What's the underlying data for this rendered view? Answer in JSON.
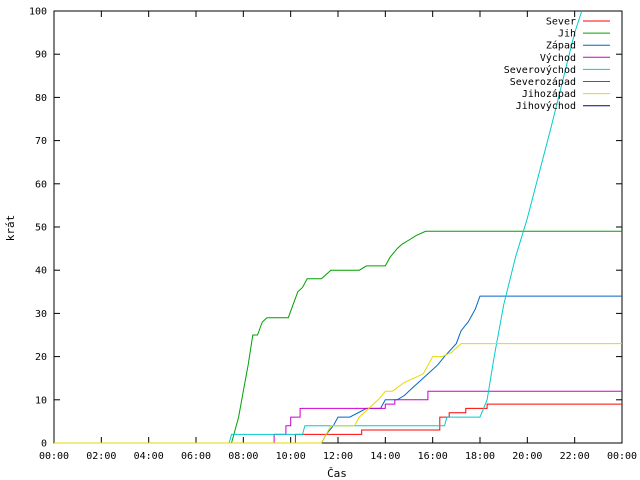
{
  "chart_data": {
    "type": "line",
    "xlabel": "Čas",
    "ylabel": "krát",
    "xlim": [
      0,
      24
    ],
    "ylim": [
      0,
      100
    ],
    "x_ticks": [
      0,
      2,
      4,
      6,
      8,
      10,
      12,
      14,
      16,
      18,
      20,
      22,
      24
    ],
    "x_tick_labels": [
      "00:00",
      "02:00",
      "04:00",
      "06:00",
      "08:00",
      "10:00",
      "12:00",
      "14:00",
      "16:00",
      "18:00",
      "20:00",
      "22:00",
      "00:00"
    ],
    "y_ticks": [
      0,
      10,
      20,
      30,
      40,
      50,
      60,
      70,
      80,
      90,
      100
    ],
    "grid": false,
    "legend_position": "top-right",
    "series": [
      {
        "name": "Sever",
        "color": "#ff0000",
        "x": [
          0,
          10.2,
          10.2,
          13.0,
          13.0,
          16.3,
          16.3,
          16.7,
          16.7,
          17.4,
          17.4,
          18.3,
          18.3,
          24
        ],
        "y": [
          0,
          0,
          2,
          2,
          3,
          3,
          6,
          6,
          7,
          7,
          8,
          8,
          9,
          9
        ]
      },
      {
        "name": "Jih",
        "color": "#00a000",
        "x": [
          0,
          7.5,
          7.6,
          7.8,
          8.0,
          8.2,
          8.4,
          8.6,
          8.8,
          9.0,
          9.9,
          10.1,
          10.3,
          10.5,
          10.7,
          11.3,
          11.7,
          12.9,
          13.2,
          14.0,
          14.2,
          14.5,
          14.7,
          15.0,
          15.3,
          15.7,
          24
        ],
        "y": [
          0,
          0,
          2,
          6,
          12,
          18,
          25,
          25,
          28,
          29,
          29,
          32,
          35,
          36,
          38,
          38,
          40,
          40,
          41,
          41,
          43,
          45,
          46,
          47,
          48,
          49,
          49
        ]
      },
      {
        "name": "Západ",
        "color": "#0066cc",
        "x": [
          0,
          11.3,
          11.5,
          11.8,
          12.0,
          12.5,
          13.2,
          13.8,
          14.0,
          14.5,
          14.8,
          15.2,
          15.8,
          16.2,
          16.5,
          17.0,
          17.2,
          17.5,
          17.8,
          18.0,
          24
        ],
        "y": [
          0,
          0,
          2,
          4,
          6,
          6,
          8,
          8,
          10,
          10,
          11,
          13,
          16,
          18,
          20,
          23,
          26,
          28,
          31,
          34,
          34
        ]
      },
      {
        "name": "Východ",
        "color": "#cc00cc",
        "x": [
          0,
          9.3,
          9.3,
          9.8,
          9.8,
          10.0,
          10.0,
          10.4,
          10.4,
          14.0,
          14.0,
          14.4,
          14.4,
          15.8,
          15.8,
          24
        ],
        "y": [
          0,
          0,
          2,
          2,
          4,
          4,
          6,
          6,
          8,
          8,
          9,
          9,
          10,
          10,
          12,
          12
        ]
      },
      {
        "name": "Severovýchod",
        "color": "#00cccc",
        "x": [
          0,
          7.4,
          7.5,
          10.5,
          10.6,
          16.5,
          16.6,
          18.0,
          18.3,
          18.6,
          19.0,
          19.5,
          20.0,
          21.0,
          22.0,
          22.3
        ],
        "y": [
          0,
          0,
          2,
          2,
          4,
          4,
          6,
          6,
          10,
          20,
          32,
          43,
          52,
          73,
          95,
          100
        ]
      },
      {
        "name": "Severozápad",
        "color": "#cc3300",
        "x": [],
        "y": []
      },
      {
        "name": "Jihozápad",
        "color": "#e8d800",
        "x": [
          0,
          11.3,
          11.5,
          11.7,
          12.7,
          12.9,
          13.7,
          14.0,
          14.3,
          14.8,
          15.6,
          16.0,
          16.4,
          16.8,
          17.2,
          17.6,
          24
        ],
        "y": [
          0,
          0,
          2,
          4,
          4,
          6,
          10,
          12,
          12,
          14,
          16,
          20,
          20,
          21,
          23,
          23,
          23
        ]
      },
      {
        "name": "Jihovýchod",
        "color": "#000099",
        "x": [],
        "y": []
      }
    ]
  }
}
